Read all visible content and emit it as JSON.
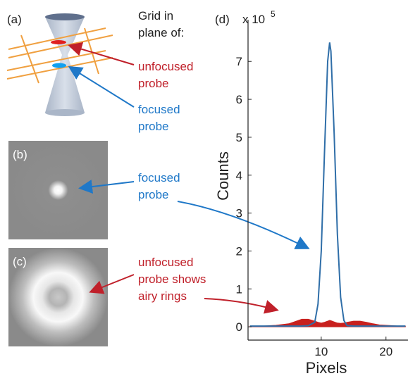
{
  "figure": {
    "panel_labels": [
      "(a)",
      "(b)",
      "(c)",
      "(d)"
    ],
    "annotations": [
      {
        "lines": [
          "Grid in",
          "plane of:"
        ],
        "color": "#222222"
      },
      {
        "lines": [
          "unfocused",
          "probe"
        ],
        "color": "#c0202a"
      },
      {
        "lines": [
          "focused",
          "probe"
        ],
        "color": "#1f78c8"
      },
      {
        "lines": [
          "focused",
          "probe"
        ],
        "color": "#1f78c8"
      },
      {
        "lines": [
          "unfocused",
          "probe shows",
          "airy rings"
        ],
        "color": "#c0202a"
      }
    ]
  },
  "chart_data": {
    "type": "line",
    "xlabel": "Pixels",
    "ylabel": "Counts",
    "y_multiplier": {
      "base": "x 10",
      "exponent": "5"
    },
    "x": [
      -1,
      0,
      1,
      2,
      3,
      4,
      5,
      6,
      7,
      8,
      9,
      9.5,
      10,
      10.5,
      11,
      11.3,
      11.5,
      12,
      12.5,
      13,
      13.5,
      14,
      15,
      16,
      17,
      18,
      19,
      20,
      21,
      22,
      23
    ],
    "series": [
      {
        "name": "unfocused probe",
        "color": "#c8201e",
        "fill": true,
        "values": [
          0.02,
          0.02,
          0.02,
          0.03,
          0.04,
          0.06,
          0.08,
          0.14,
          0.2,
          0.2,
          0.15,
          0.12,
          0.1,
          0.12,
          0.15,
          0.17,
          0.16,
          0.13,
          0.1,
          0.09,
          0.1,
          0.12,
          0.15,
          0.15,
          0.12,
          0.08,
          0.05,
          0.04,
          0.03,
          0.02,
          0.02
        ]
      },
      {
        "name": "focused probe",
        "color": "#2f6ea8",
        "fill": false,
        "values": [
          0.02,
          0.02,
          0.02,
          0.02,
          0.02,
          0.02,
          0.02,
          0.02,
          0.02,
          0.03,
          0.12,
          0.6,
          2.0,
          4.55,
          7.0,
          7.5,
          7.27,
          5.1,
          2.44,
          0.78,
          0.17,
          0.03,
          0.02,
          0.02,
          0.02,
          0.02,
          0.02,
          0.02,
          0.02,
          0.02,
          0.02
        ]
      }
    ],
    "xlim": [
      -1.3,
      23.4
    ],
    "xticks": [
      10,
      20
    ],
    "ylim": [
      -0.35,
      8.1
    ],
    "yticks": [
      0,
      1,
      2,
      3,
      4,
      5,
      6,
      7
    ],
    "grid": false
  }
}
